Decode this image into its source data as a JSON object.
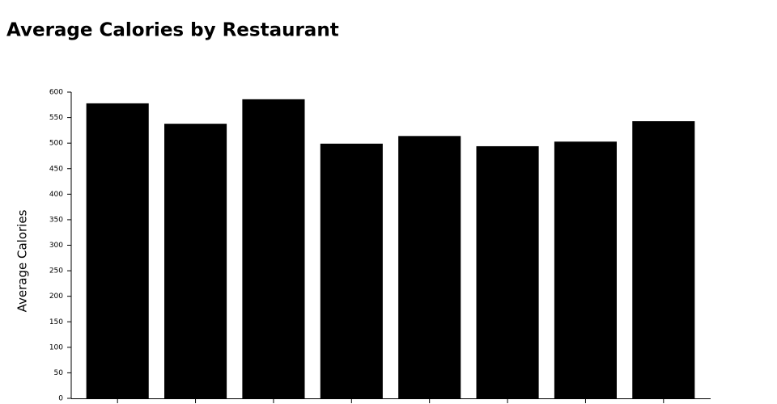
{
  "chart_data": {
    "type": "bar",
    "title": "Average Calories by Restaurant",
    "y_label": "Average Calories",
    "categories": [
      null,
      null,
      null,
      null,
      null,
      null,
      null,
      null
    ],
    "values": [
      578,
      538,
      586,
      499,
      514,
      494,
      503,
      543
    ],
    "color": "#000000",
    "ylim": [
      0,
      600
    ],
    "yticks": [
      0,
      50,
      100,
      150,
      200,
      250,
      300,
      350,
      400,
      450,
      500,
      550,
      600
    ],
    "grid": false
  }
}
